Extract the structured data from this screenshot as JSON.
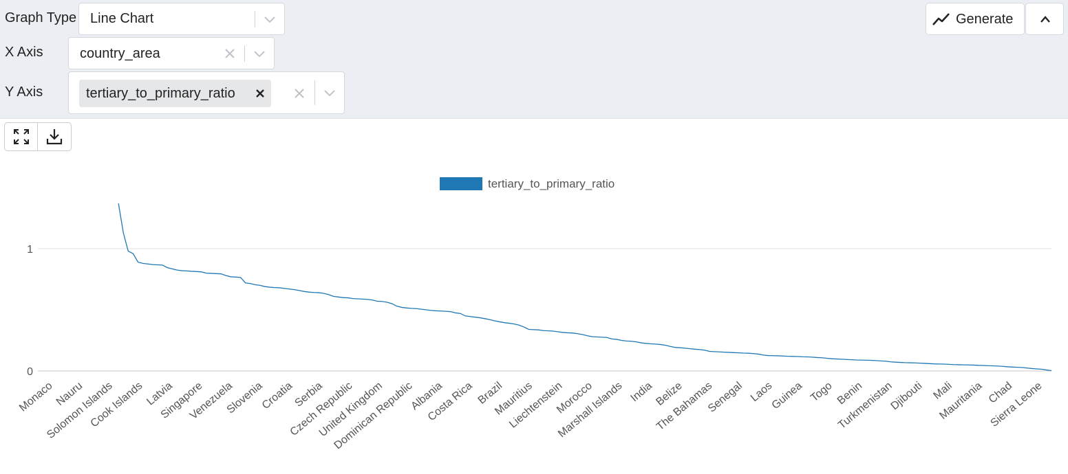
{
  "controls": {
    "graph_type_label": "Graph Type",
    "graph_type_value": "Line Chart",
    "x_axis_label": "X Axis",
    "x_axis_value": "country_area",
    "y_axis_label": "Y Axis",
    "y_axis_chip": "tertiary_to_primary_ratio",
    "generate_label": "Generate"
  },
  "icons": {
    "generate": "line-chart-icon",
    "collapse": "chevron-up-icon",
    "fullscreen": "expand-icon",
    "download": "download-icon"
  },
  "colors": {
    "series": "#1f77b4",
    "panel_bg": "#ebeef3"
  },
  "chart_data": {
    "type": "line",
    "legend_position": "top-center",
    "grid": true,
    "ylim": [
      0,
      1.4
    ],
    "yticks": [
      0,
      1
    ],
    "x_tick_labels": [
      "Monaco",
      "Nauru",
      "Solomon Islands",
      "Cook Islands",
      "Latvia",
      "Singapore",
      "Venezuela",
      "Slovenia",
      "Croatia",
      "Serbia",
      "Czech Republic",
      "United Kingdom",
      "Dominican Republic",
      "Albania",
      "Costa Rica",
      "Brazil",
      "Mauritius",
      "Liechtenstein",
      "Morocco",
      "Marshall Islands",
      "India",
      "Belize",
      "The Bahamas",
      "Senegal",
      "Laos",
      "Guinea",
      "Togo",
      "Benin",
      "Turkmenistan",
      "Djibouti",
      "Mali",
      "Mauritania",
      "Chad",
      "Sierra Leone"
    ],
    "series": [
      {
        "name": "tertiary_to_primary_ratio",
        "values": [
          null,
          null,
          null,
          null,
          null,
          null,
          null,
          null,
          null,
          null,
          null,
          null,
          null,
          null,
          null,
          null,
          1.37,
          1.13,
          0.98,
          0.96,
          0.89,
          0.88,
          0.875,
          0.87,
          0.868,
          0.866,
          0.845,
          0.835,
          0.825,
          0.82,
          0.818,
          0.815,
          0.813,
          0.81,
          0.8,
          0.798,
          0.796,
          0.794,
          0.78,
          0.77,
          0.768,
          0.765,
          0.72,
          0.715,
          0.705,
          0.7,
          0.69,
          0.685,
          0.682,
          0.68,
          0.675,
          0.67,
          0.665,
          0.658,
          0.65,
          0.645,
          0.642,
          0.64,
          0.635,
          0.625,
          0.61,
          0.605,
          0.6,
          0.598,
          0.592,
          0.59,
          0.588,
          0.585,
          0.58,
          0.57,
          0.568,
          0.562,
          0.55,
          0.53,
          0.52,
          0.515,
          0.512,
          0.51,
          0.505,
          0.5,
          0.495,
          0.492,
          0.49,
          0.488,
          0.485,
          0.475,
          0.47,
          0.45,
          0.445,
          0.44,
          0.435,
          0.428,
          0.42,
          0.41,
          0.402,
          0.395,
          0.39,
          0.384,
          0.375,
          0.36,
          0.34,
          0.338,
          0.336,
          0.33,
          0.328,
          0.326,
          0.32,
          0.315,
          0.312,
          0.31,
          0.305,
          0.298,
          0.288,
          0.28,
          0.278,
          0.276,
          0.274,
          0.262,
          0.258,
          0.25,
          0.245,
          0.243,
          0.238,
          0.23,
          0.225,
          0.222,
          0.22,
          0.216,
          0.21,
          0.2,
          0.192,
          0.19,
          0.186,
          0.182,
          0.178,
          0.175,
          0.17,
          0.16,
          0.158,
          0.156,
          0.154,
          0.152,
          0.15,
          0.148,
          0.146,
          0.145,
          0.142,
          0.138,
          0.13,
          0.126,
          0.125,
          0.124,
          0.122,
          0.12,
          0.119,
          0.118,
          0.116,
          0.115,
          0.113,
          0.11,
          0.108,
          0.104,
          0.1,
          0.098,
          0.096,
          0.094,
          0.092,
          0.09,
          0.089,
          0.088,
          0.087,
          0.085,
          0.082,
          0.08,
          0.075,
          0.072,
          0.07,
          0.068,
          0.067,
          0.066,
          0.064,
          0.062,
          0.06,
          0.058,
          0.057,
          0.056,
          0.054,
          0.052,
          0.051,
          0.05,
          0.049,
          0.048,
          0.046,
          0.045,
          0.043,
          0.042,
          0.04,
          0.038,
          0.034,
          0.032,
          0.03,
          0.028,
          0.024,
          0.02,
          0.017,
          0.014,
          0.008,
          0.003
        ]
      }
    ]
  }
}
